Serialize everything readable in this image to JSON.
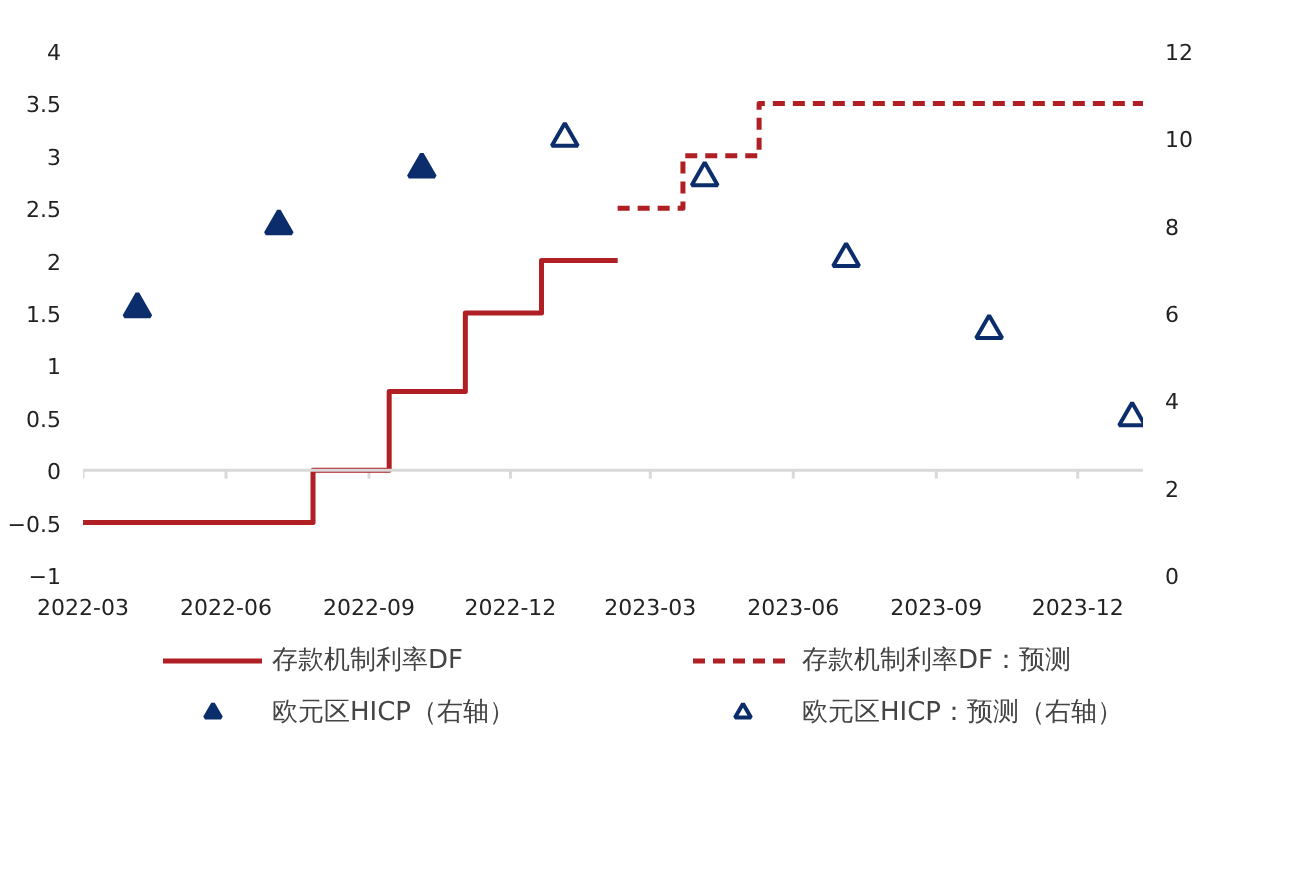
{
  "chart_data": {
    "type": "step",
    "x": [
      "2022-03-01",
      "2022-07-27",
      "2022-09-14",
      "2022-11-02",
      "2022-12-21",
      "2023-02-08"
    ],
    "xlim": [
      "2022-03-01",
      "2024-01-12"
    ],
    "xticks": [
      "2022-03",
      "2022-06",
      "2022-09",
      "2022-12",
      "2023-03",
      "2023-06",
      "2023-09",
      "2023-12"
    ],
    "ylim": [
      -1,
      4
    ],
    "yticks": [
      -1,
      -0.5,
      0,
      0.5,
      1,
      1.5,
      2,
      2.5,
      3,
      3.5,
      4
    ],
    "y2lim": [
      0,
      12
    ],
    "y2ticks": [
      0,
      2,
      4,
      6,
      8,
      10,
      12
    ],
    "ref_lines": [
      {
        "axis": "y",
        "value": 0,
        "color": "#d9d9d9"
      }
    ],
    "grid": false,
    "legend": "bottom",
    "series": [
      {
        "name": "存款机制利率DF",
        "color": "#b01f24",
        "line_style": "solid",
        "values": [
          -0.5,
          0,
          0.75,
          1.5,
          2.0,
          2.0
        ]
      },
      {
        "name": "存款机制利率DF：预测",
        "type": "step",
        "color": "#b01f24",
        "line_style": "dashed",
        "x": [
          "2023-02-08",
          "2023-03-22",
          "2023-05-10",
          "2024-01-12"
        ],
        "values": [
          2.5,
          3.0,
          3.5,
          3.5
        ]
      },
      {
        "name": "欧元区HICP（右轴）",
        "type": "scatter",
        "axis": "y2",
        "marker": "triangle",
        "color": "#0c2d6b",
        "x": [
          "2022-04-05",
          "2022-07-05",
          "2022-10-05"
        ],
        "values": [
          6.1,
          8.0,
          9.3
        ]
      },
      {
        "name": "欧元区HICP：预测（右轴）",
        "type": "scatter",
        "axis": "y2",
        "marker": "triangle_open",
        "color": "#0c2d6b",
        "x": [
          "2023-01-05",
          "2023-04-05",
          "2023-07-05",
          "2023-10-05",
          "2024-01-05"
        ],
        "values": [
          10.0,
          9.1,
          7.25,
          5.6,
          3.6
        ]
      }
    ]
  }
}
